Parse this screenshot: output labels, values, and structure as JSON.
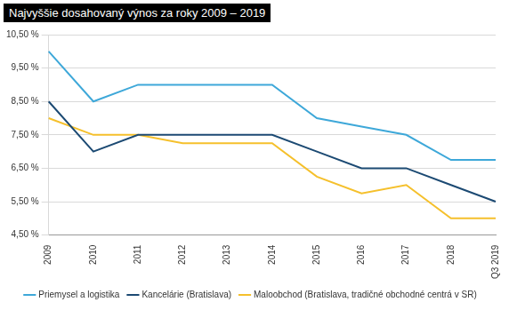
{
  "chart_data": {
    "type": "line",
    "title": "Najvyššie dosahovaný výnos za roky 2009 – 2019",
    "categories": [
      "2009",
      "2010",
      "2011",
      "2012",
      "2013",
      "2014",
      "2015",
      "2016",
      "2017",
      "2018",
      "Q3 2019"
    ],
    "series": [
      {
        "name": "Priemysel a logistika",
        "color": "#3ea8d9",
        "values": [
          10.0,
          8.5,
          9.0,
          9.0,
          9.0,
          9.0,
          8.0,
          7.75,
          7.5,
          6.75,
          6.75
        ]
      },
      {
        "name": "Kancelárie (Bratislava)",
        "color": "#1c4a73",
        "values": [
          8.5,
          7.0,
          7.5,
          7.5,
          7.5,
          7.5,
          7.0,
          6.5,
          6.5,
          6.0,
          5.5
        ]
      },
      {
        "name": "Maloobchod (Bratislava, tradičné obchodné centrá v SR)",
        "color": "#f5c02c",
        "values": [
          8.0,
          7.5,
          7.5,
          7.25,
          7.25,
          7.25,
          6.25,
          5.75,
          6.0,
          5.0,
          5.0
        ]
      }
    ],
    "ylim": [
      4.5,
      10.5
    ],
    "yticks": [
      {
        "value": 4.5,
        "label": "4,50 %"
      },
      {
        "value": 5.5,
        "label": "5,50 %"
      },
      {
        "value": 6.5,
        "label": "6,50 %"
      },
      {
        "value": 7.5,
        "label": "7,50 %"
      },
      {
        "value": 8.5,
        "label": "8,50 %"
      },
      {
        "value": 9.5,
        "label": "9,50 %"
      },
      {
        "value": 10.5,
        "label": "10,50 %"
      }
    ],
    "grid": true,
    "legend": "bottom"
  }
}
